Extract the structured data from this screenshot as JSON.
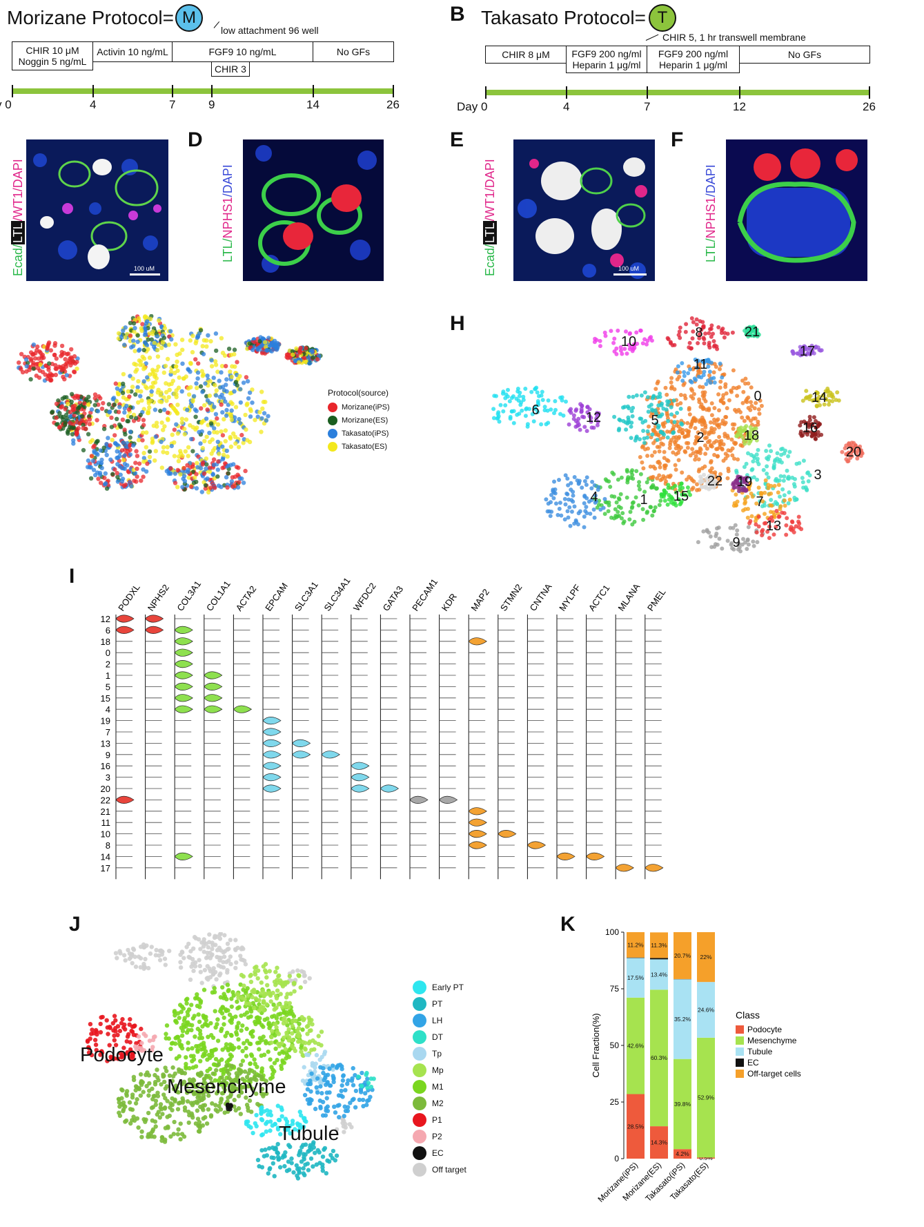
{
  "panels": {
    "B": "B",
    "D": "D",
    "E": "E",
    "F": "F",
    "H": "H",
    "I": "I",
    "J": "J",
    "K": "K"
  },
  "protocolA": {
    "title": "Morizane Protocol=",
    "icon_letter": "M",
    "icon_color": "#5bc0eb",
    "note": "low attachment 96 well",
    "steps": [
      "CHIR 10 μM\nNoggin 5 ng/mL",
      "Activin 10 ng/mL",
      "FGF9 10 ng/mL",
      "No GFs"
    ],
    "sub_step": "CHIR 3",
    "day_prefix": "y 0",
    "days": [
      "4",
      "7",
      "9",
      "14",
      "26"
    ]
  },
  "protocolB": {
    "title": "Takasato Protocol=",
    "icon_letter": "T",
    "icon_color": "#8cc43c",
    "note": "CHIR 5, 1 hr  transwell membrane",
    "steps": [
      "CHIR 8 μM",
      "FGF9 200 ng/ml\nHeparin 1 μg/ml",
      "FGF9 200 ng/ml\nHeparin 1 μg/ml",
      "No GFs"
    ],
    "day_prefix": "Day 0",
    "days": [
      "4",
      "7",
      "12",
      "26"
    ]
  },
  "stain_labels": {
    "C": [
      "Ecad/",
      "LTL",
      "/WT1/DAPI"
    ],
    "D": [
      "LTL/",
      "NPHS1",
      "/DAPI"
    ],
    "E": [
      "Ecad/",
      "LTL",
      "/WT1/DAPI"
    ],
    "F": [
      "LTL/",
      "NPHS1",
      "/DAPI"
    ],
    "scalebar": "100 uM"
  },
  "umap_G": {
    "legend_title": "Protocol(source)",
    "legend": [
      {
        "label": "Morizane(iPS)",
        "color": "#e8262b"
      },
      {
        "label": "Morizane(ES)",
        "color": "#1a5e20"
      },
      {
        "label": "Takasato(iPS)",
        "color": "#2b7fdc"
      },
      {
        "label": "Takasato(ES)",
        "color": "#f3e81c"
      }
    ]
  },
  "umap_H": {
    "clusters": [
      {
        "id": "0",
        "color": "#f07f2a"
      },
      {
        "id": "1",
        "color": "#3fc93f"
      },
      {
        "id": "2",
        "color": "#f0822a"
      },
      {
        "id": "3",
        "color": "#3ee0c8"
      },
      {
        "id": "4",
        "color": "#3d8ee0"
      },
      {
        "id": "5",
        "color": "#1ec7c7"
      },
      {
        "id": "6",
        "color": "#20e0f0"
      },
      {
        "id": "7",
        "color": "#f5a31e"
      },
      {
        "id": "8",
        "color": "#e0263a"
      },
      {
        "id": "9",
        "color": "#a0a0a0"
      },
      {
        "id": "10",
        "color": "#f03ce8"
      },
      {
        "id": "11",
        "color": "#3a9ae8"
      },
      {
        "id": "12",
        "color": "#9c3ed6"
      },
      {
        "id": "13",
        "color": "#ef3b3b"
      },
      {
        "id": "14",
        "color": "#c9c21a"
      },
      {
        "id": "15",
        "color": "#2ee03b"
      },
      {
        "id": "16",
        "color": "#8e1a1a"
      },
      {
        "id": "17",
        "color": "#9a5ae0"
      },
      {
        "id": "18",
        "color": "#a6e04f"
      },
      {
        "id": "19",
        "color": "#8a2e8a"
      },
      {
        "id": "20",
        "color": "#f06a5a"
      },
      {
        "id": "21",
        "color": "#2ee09a"
      },
      {
        "id": "22",
        "color": "#d8d8d8"
      }
    ]
  },
  "violin_I": {
    "genes": [
      "PODXL",
      "NPHS2",
      "COL3A1",
      "COL1A1",
      "ACTA2",
      "EPCAM",
      "SLC3A1",
      "SLC34A1",
      "WFDC2",
      "GATA3",
      "PECAM1",
      "KDR",
      "MAP2",
      "STMN2",
      "CNTNA",
      "MYLPF",
      "ACTC1",
      "MLANA",
      "PMEL"
    ],
    "rows": [
      "12",
      "6",
      "18",
      "0",
      "2",
      "1",
      "5",
      "15",
      "4",
      "19",
      "7",
      "13",
      "9",
      "16",
      "3",
      "20",
      "22",
      "21",
      "11",
      "10",
      "8",
      "14",
      "17"
    ],
    "x_ticks": [
      "1",
      "3"
    ],
    "expressed": [
      {
        "gene": "PODXL",
        "rows": [
          "12",
          "6",
          "22"
        ],
        "color": "#e8453c"
      },
      {
        "gene": "NPHS2",
        "rows": [
          "12",
          "6"
        ],
        "color": "#e8453c"
      },
      {
        "gene": "COL3A1",
        "rows": [
          "6",
          "18",
          "0",
          "2",
          "1",
          "5",
          "15",
          "4",
          "14"
        ],
        "color": "#8ee04f"
      },
      {
        "gene": "COL1A1",
        "rows": [
          "1",
          "5",
          "15",
          "4"
        ],
        "color": "#8ee04f"
      },
      {
        "gene": "ACTA2",
        "rows": [
          "4"
        ],
        "color": "#8ee04f"
      },
      {
        "gene": "EPCAM",
        "rows": [
          "19",
          "7",
          "13",
          "9",
          "16",
          "3",
          "20"
        ],
        "color": "#7fd8ec"
      },
      {
        "gene": "SLC3A1",
        "rows": [
          "13",
          "9"
        ],
        "color": "#7fd8ec"
      },
      {
        "gene": "SLC34A1",
        "rows": [
          "9"
        ],
        "color": "#7fd8ec"
      },
      {
        "gene": "WFDC2",
        "rows": [
          "16",
          "3",
          "20"
        ],
        "color": "#7fd8ec"
      },
      {
        "gene": "GATA3",
        "rows": [
          "20"
        ],
        "color": "#7fd8ec"
      },
      {
        "gene": "PECAM1",
        "rows": [
          "22"
        ],
        "color": "#a8a8a8"
      },
      {
        "gene": "KDR",
        "rows": [
          "22"
        ],
        "color": "#a8a8a8"
      },
      {
        "gene": "MAP2",
        "rows": [
          "18",
          "21",
          "11",
          "10",
          "8"
        ],
        "color": "#f3a233"
      },
      {
        "gene": "STMN2",
        "rows": [
          "10"
        ],
        "color": "#f3a233"
      },
      {
        "gene": "CNTNA",
        "rows": [
          "8"
        ],
        "color": "#f3a233"
      },
      {
        "gene": "MYLPF",
        "rows": [
          "14"
        ],
        "color": "#f3a233"
      },
      {
        "gene": "ACTC1",
        "rows": [
          "14"
        ],
        "color": "#f3a233"
      },
      {
        "gene": "MLANA",
        "rows": [
          "17"
        ],
        "color": "#f3a233"
      },
      {
        "gene": "PMEL",
        "rows": [
          "17"
        ],
        "color": "#f3a233"
      }
    ]
  },
  "umap_J": {
    "labels": {
      "podocyte": "Podocyte",
      "mesenchyme": "Mesenchyme",
      "tubule": "Tubule"
    },
    "legend": [
      {
        "label": "Early PT",
        "color": "#2ee6ef"
      },
      {
        "label": "PT",
        "color": "#1fb7c2"
      },
      {
        "label": "LH",
        "color": "#32a4e6"
      },
      {
        "label": "DT",
        "color": "#2ee0c8"
      },
      {
        "label": "Tp",
        "color": "#a9d8f0"
      },
      {
        "label": "Mp",
        "color": "#a6e34f"
      },
      {
        "label": "M1",
        "color": "#7ad61f"
      },
      {
        "label": "M2",
        "color": "#7cba3b"
      },
      {
        "label": "P1",
        "color": "#e8161e"
      },
      {
        "label": "P2",
        "color": "#f5a8b0"
      },
      {
        "label": "EC",
        "color": "#111111"
      },
      {
        "label": "Off target",
        "color": "#cfcfcf"
      }
    ]
  },
  "chart_data": {
    "type": "bar",
    "stacked": true,
    "ylabel": "Cell Fraction(%)",
    "ylim": [
      0,
      100
    ],
    "yticks": [
      "0",
      "25",
      "50",
      "75",
      "100"
    ],
    "categories": [
      "Morizane(iPS)",
      "Morizane(ES)",
      "Takasato(iPS)",
      "Takasato(ES)"
    ],
    "legend_title": "Class",
    "series": [
      {
        "name": "Podocyte",
        "color": "#ee5a3c",
        "values": [
          28.5,
          14.3,
          4.2,
          0.5
        ],
        "labels": [
          "28.5%",
          "14.3%",
          "4.2%",
          "0.5%"
        ]
      },
      {
        "name": "Mesenchyme",
        "color": "#a6e34f",
        "values": [
          42.6,
          60.3,
          39.8,
          52.9
        ],
        "labels": [
          "42.6%",
          "60.3%",
          "39.8%",
          "52.9%"
        ]
      },
      {
        "name": "Tubule",
        "color": "#a9e2f3",
        "values": [
          17.5,
          13.4,
          35.2,
          24.6
        ],
        "labels": [
          "17.5%",
          "13.4%",
          "35.2%",
          "24.6%"
        ]
      },
      {
        "name": "EC",
        "color": "#111111",
        "values": [
          0.2,
          0.6,
          0.1,
          0
        ],
        "labels": [
          "0.2%",
          "0.6%",
          "0.1%",
          "0%"
        ]
      },
      {
        "name": "Off-target cells",
        "color": "#f5a02a",
        "values": [
          11.2,
          11.3,
          20.7,
          22
        ],
        "labels": [
          "11.2%",
          "11.3%",
          "20.7%",
          "22%"
        ]
      }
    ]
  }
}
